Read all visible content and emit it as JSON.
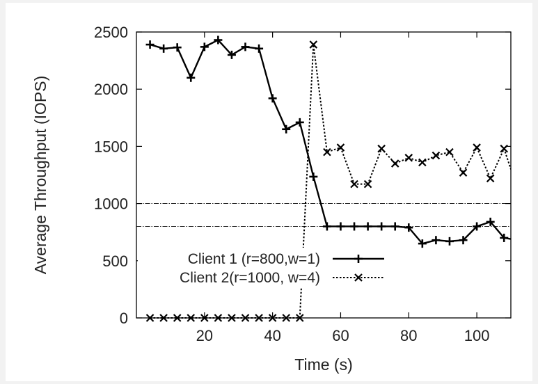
{
  "chart_data": {
    "type": "line",
    "title": "",
    "xlabel": "Time (s)",
    "ylabel": "Average Throughput (IOPS)",
    "xlim": [
      0,
      110
    ],
    "ylim": [
      0,
      2500
    ],
    "x_ticks": [
      20,
      40,
      60,
      80,
      100
    ],
    "y_ticks": [
      0,
      500,
      1000,
      1500,
      2000,
      2500
    ],
    "grid": false,
    "legend_position": "lower-left",
    "reference_lines": [
      1000,
      800
    ],
    "series": [
      {
        "name": "Client 1 (r=800,w=1)",
        "line_style": "solid",
        "marker": "plus",
        "color": "#000000",
        "x": [
          4,
          8,
          12,
          16,
          20,
          24,
          28,
          32,
          36,
          40,
          44,
          48,
          52,
          56,
          60,
          64,
          68,
          72,
          76,
          80,
          84,
          88,
          92,
          96,
          100,
          104,
          108,
          110
        ],
        "y": [
          2390,
          2355,
          2365,
          2100,
          2370,
          2430,
          2300,
          2370,
          2355,
          1920,
          1650,
          1710,
          1235,
          800,
          800,
          800,
          800,
          800,
          800,
          790,
          650,
          680,
          670,
          680,
          800,
          840,
          700,
          690
        ]
      },
      {
        "name": "Client 2(r=1000, w=4)",
        "line_style": "dotted",
        "marker": "x",
        "color": "#000000",
        "x": [
          4,
          8,
          12,
          16,
          20,
          24,
          28,
          32,
          36,
          40,
          44,
          48,
          52,
          56,
          60,
          64,
          68,
          72,
          76,
          80,
          84,
          88,
          92,
          96,
          100,
          104,
          108,
          110
        ],
        "y": [
          0,
          0,
          0,
          0,
          0,
          0,
          0,
          0,
          0,
          0,
          0,
          0,
          2390,
          1450,
          1490,
          1170,
          1170,
          1480,
          1350,
          1400,
          1360,
          1420,
          1450,
          1270,
          1490,
          1220,
          1480,
          1300
        ]
      }
    ]
  }
}
